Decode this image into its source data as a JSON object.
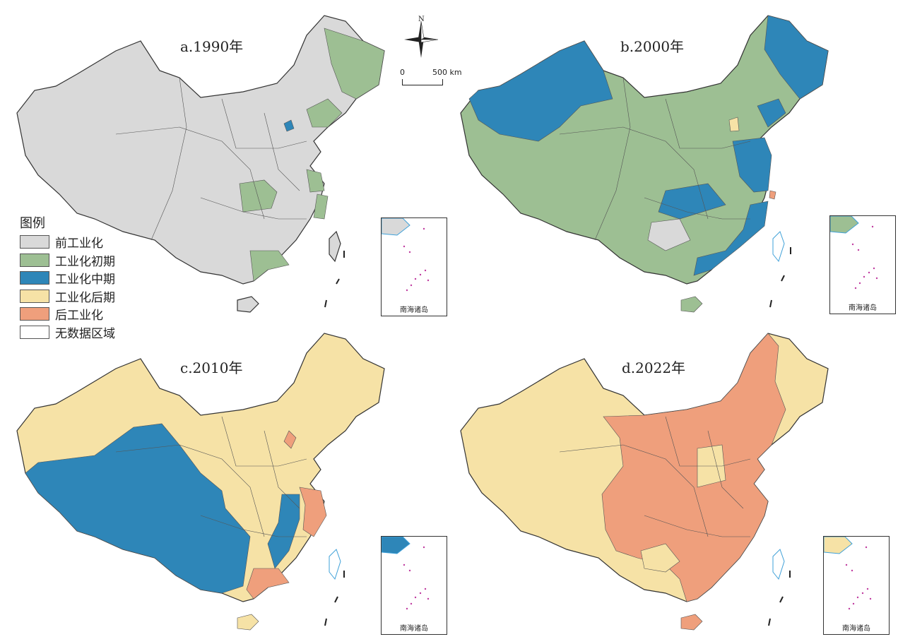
{
  "panels": [
    {
      "id": "a",
      "title": "a.1990年",
      "base_class": "pre"
    },
    {
      "id": "b",
      "title": "b.2000年",
      "base_class": "early"
    },
    {
      "id": "c",
      "title": "c.2010年",
      "base_class": "late"
    },
    {
      "id": "d",
      "title": "d.2022年",
      "base_class": "late"
    }
  ],
  "legend": {
    "title": "图例",
    "items": [
      {
        "key": "pre",
        "label": "前工业化",
        "color": "#d9d9d9"
      },
      {
        "key": "early",
        "label": "工业化初期",
        "color": "#9dbf93"
      },
      {
        "key": "mid",
        "label": "工业化中期",
        "color": "#2e86b8"
      },
      {
        "key": "late",
        "label": "工业化后期",
        "color": "#f6e2a6"
      },
      {
        "key": "post",
        "label": "后工业化",
        "color": "#ef9f7c"
      },
      {
        "key": "none",
        "label": "无数据区域",
        "color": "#ffffff"
      }
    ]
  },
  "north_label": "N",
  "scale": {
    "zero": "0",
    "distance": "500 km"
  },
  "inset_label": "南海诸岛",
  "colors": {
    "border": "#555555",
    "coast": "#3ea0d8",
    "outline": "#333333"
  }
}
